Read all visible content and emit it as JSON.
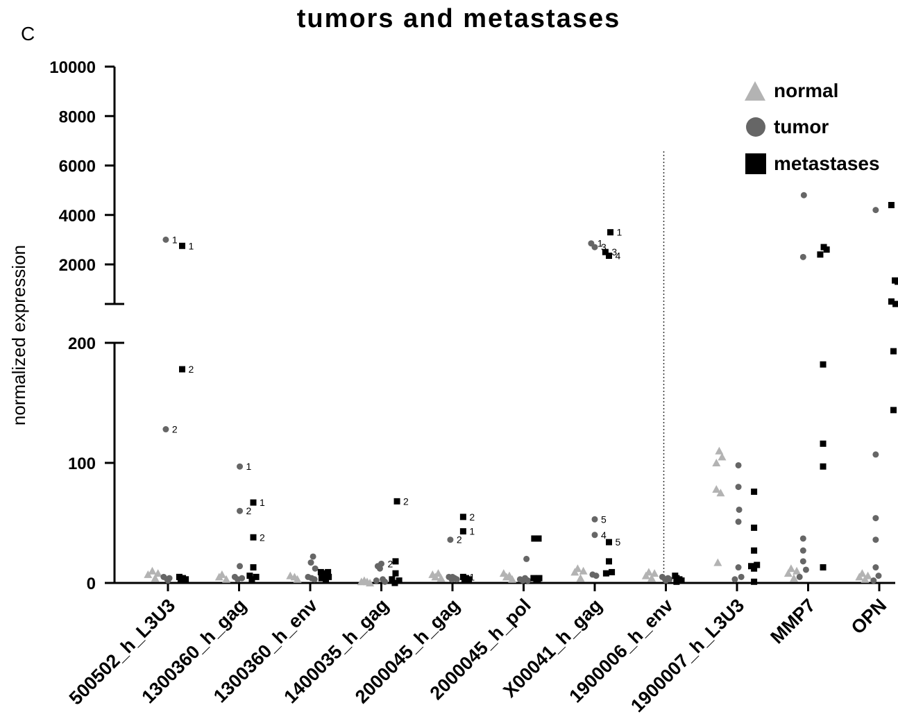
{
  "chart_data": {
    "type": "scatter",
    "title": "tumors and metastases",
    "panel_letter": "C",
    "ylabel": "normalized expression",
    "xlabel": "",
    "y_axis": {
      "broken": true,
      "lower_segment": {
        "range": [
          0,
          200
        ],
        "ticks": [
          0,
          100,
          200
        ]
      },
      "upper_segment": {
        "range": [
          400,
          10000
        ],
        "ticks": [
          2000,
          4000,
          6000,
          8000,
          10000
        ]
      }
    },
    "categories": [
      "500502_h_L3U3",
      "1300360_h_gag",
      "1300360_h_env",
      "1400035_h_gag",
      "2000045_h_gag",
      "2000045_h_pol",
      "X00041_h_gag",
      "1900006_h_env",
      "1900007_h_L3U3",
      "MMP7",
      "OPN"
    ],
    "divider_after_category": "1900006_h_env",
    "legend": {
      "position": "top-right",
      "entries": [
        {
          "name": "normal",
          "marker": "triangle",
          "color": "#b3b3b3"
        },
        {
          "name": "tumor",
          "marker": "circle",
          "color": "#666666"
        },
        {
          "name": "metastases",
          "marker": "square",
          "color": "#000000"
        }
      ]
    },
    "series": [
      {
        "name": "normal",
        "points": [
          {
            "c": 0,
            "o": -0.28,
            "y": 7
          },
          {
            "c": 0,
            "o": -0.22,
            "y": 10
          },
          {
            "c": 0,
            "o": -0.18,
            "y": 4
          },
          {
            "c": 0,
            "o": -0.14,
            "y": 8
          },
          {
            "c": 1,
            "o": -0.28,
            "y": 5
          },
          {
            "c": 1,
            "o": -0.24,
            "y": 7
          },
          {
            "c": 1,
            "o": -0.18,
            "y": 3
          },
          {
            "c": 2,
            "o": -0.28,
            "y": 6
          },
          {
            "c": 2,
            "o": -0.22,
            "y": 5
          },
          {
            "c": 2,
            "o": -0.18,
            "y": 3
          },
          {
            "c": 3,
            "o": -0.28,
            "y": 1
          },
          {
            "c": 3,
            "o": -0.24,
            "y": 2
          },
          {
            "c": 3,
            "o": -0.2,
            "y": 1
          },
          {
            "c": 3,
            "o": -0.16,
            "y": 0
          },
          {
            "c": 4,
            "o": -0.28,
            "y": 7
          },
          {
            "c": 4,
            "o": -0.24,
            "y": 5
          },
          {
            "c": 4,
            "o": -0.2,
            "y": 8
          },
          {
            "c": 4,
            "o": -0.16,
            "y": 4
          },
          {
            "c": 5,
            "o": -0.28,
            "y": 8
          },
          {
            "c": 5,
            "o": -0.24,
            "y": 5
          },
          {
            "c": 5,
            "o": -0.2,
            "y": 6
          },
          {
            "c": 5,
            "o": -0.16,
            "y": 3
          },
          {
            "c": 6,
            "o": -0.28,
            "y": 9
          },
          {
            "c": 6,
            "o": -0.24,
            "y": 12
          },
          {
            "c": 6,
            "o": -0.2,
            "y": 4
          },
          {
            "c": 6,
            "o": -0.16,
            "y": 10
          },
          {
            "c": 7,
            "o": -0.28,
            "y": 6
          },
          {
            "c": 7,
            "o": -0.24,
            "y": 9
          },
          {
            "c": 7,
            "o": -0.2,
            "y": 4
          },
          {
            "c": 7,
            "o": -0.16,
            "y": 8
          },
          {
            "c": 8,
            "o": -0.29,
            "y": 100
          },
          {
            "c": 8,
            "o": -0.25,
            "y": 110
          },
          {
            "c": 8,
            "o": -0.21,
            "y": 105
          },
          {
            "c": 8,
            "o": -0.29,
            "y": 78
          },
          {
            "c": 8,
            "o": -0.23,
            "y": 75
          },
          {
            "c": 8,
            "o": -0.27,
            "y": 17
          },
          {
            "c": 9,
            "o": -0.28,
            "y": 8
          },
          {
            "c": 9,
            "o": -0.24,
            "y": 12
          },
          {
            "c": 9,
            "o": -0.2,
            "y": 4
          },
          {
            "c": 9,
            "o": -0.16,
            "y": 10
          },
          {
            "c": 10,
            "o": -0.28,
            "y": 5
          },
          {
            "c": 10,
            "o": -0.24,
            "y": 8
          },
          {
            "c": 10,
            "o": -0.2,
            "y": 3
          },
          {
            "c": 10,
            "o": -0.16,
            "y": 6
          }
        ]
      },
      {
        "name": "tumor",
        "points": [
          {
            "c": 0,
            "o": -0.03,
            "y": 3000,
            "label": "1"
          },
          {
            "c": 0,
            "o": -0.03,
            "y": 128,
            "label": "2"
          },
          {
            "c": 0,
            "o": -0.06,
            "y": 5
          },
          {
            "c": 0,
            "o": -0.01,
            "y": 3
          },
          {
            "c": 0,
            "o": 0.02,
            "y": 4
          },
          {
            "c": 0,
            "o": 0.0,
            "y": 2
          },
          {
            "c": 1,
            "o": 0.01,
            "y": 97,
            "label": "1"
          },
          {
            "c": 1,
            "o": 0.01,
            "y": 60,
            "label": "2"
          },
          {
            "c": 1,
            "o": 0.01,
            "y": 14
          },
          {
            "c": 1,
            "o": -0.06,
            "y": 5
          },
          {
            "c": 1,
            "o": -0.02,
            "y": 3
          },
          {
            "c": 1,
            "o": 0.04,
            "y": 4
          },
          {
            "c": 2,
            "o": 0.04,
            "y": 22
          },
          {
            "c": 2,
            "o": 0.01,
            "y": 17
          },
          {
            "c": 2,
            "o": 0.07,
            "y": 12
          },
          {
            "c": 2,
            "o": -0.03,
            "y": 5
          },
          {
            "c": 2,
            "o": 0.02,
            "y": 4
          },
          {
            "c": 2,
            "o": 0.06,
            "y": 3
          },
          {
            "c": 3,
            "o": -0.05,
            "y": 14
          },
          {
            "c": 3,
            "o": 0.0,
            "y": 16,
            "label": "2"
          },
          {
            "c": 3,
            "o": -0.02,
            "y": 12
          },
          {
            "c": 3,
            "o": -0.07,
            "y": 2
          },
          {
            "c": 3,
            "o": 0.02,
            "y": 3
          },
          {
            "c": 3,
            "o": 0.05,
            "y": 1
          },
          {
            "c": 4,
            "o": -0.03,
            "y": 36,
            "label": "2"
          },
          {
            "c": 4,
            "o": -0.05,
            "y": 5
          },
          {
            "c": 4,
            "o": -0.01,
            "y": 3
          },
          {
            "c": 4,
            "o": 0.03,
            "y": 4
          },
          {
            "c": 4,
            "o": 0.06,
            "y": 3
          },
          {
            "c": 4,
            "o": 0.0,
            "y": 5
          },
          {
            "c": 5,
            "o": 0.04,
            "y": 20
          },
          {
            "c": 5,
            "o": -0.05,
            "y": 3
          },
          {
            "c": 5,
            "o": -0.01,
            "y": 2
          },
          {
            "c": 5,
            "o": 0.02,
            "y": 4
          },
          {
            "c": 5,
            "o": 0.06,
            "y": 2
          },
          {
            "c": 6,
            "o": -0.05,
            "y": 2850,
            "label": "1"
          },
          {
            "c": 6,
            "o": 0.0,
            "y": 2700,
            "label": "3"
          },
          {
            "c": 6,
            "o": 0.0,
            "y": 53,
            "label": "5"
          },
          {
            "c": 6,
            "o": 0.0,
            "y": 40,
            "label": "4"
          },
          {
            "c": 6,
            "o": -0.03,
            "y": 7
          },
          {
            "c": 6,
            "o": 0.02,
            "y": 6
          },
          {
            "c": 7,
            "o": -0.05,
            "y": 5
          },
          {
            "c": 7,
            "o": -0.01,
            "y": 3
          },
          {
            "c": 7,
            "o": 0.03,
            "y": 4
          },
          {
            "c": 7,
            "o": 0.0,
            "y": 2
          },
          {
            "c": 7,
            "o": 0.05,
            "y": 3
          },
          {
            "c": 8,
            "o": 0.02,
            "y": 98
          },
          {
            "c": 8,
            "o": 0.02,
            "y": 80
          },
          {
            "c": 8,
            "o": 0.03,
            "y": 61
          },
          {
            "c": 8,
            "o": 0.02,
            "y": 51
          },
          {
            "c": 8,
            "o": 0.02,
            "y": 13
          },
          {
            "c": 8,
            "o": -0.03,
            "y": 3
          },
          {
            "c": 8,
            "o": 0.06,
            "y": 5
          },
          {
            "c": 9,
            "o": -0.06,
            "y": 4800
          },
          {
            "c": 9,
            "o": -0.07,
            "y": 2300
          },
          {
            "c": 9,
            "o": -0.07,
            "y": 37
          },
          {
            "c": 9,
            "o": -0.07,
            "y": 27
          },
          {
            "c": 9,
            "o": -0.07,
            "y": 18
          },
          {
            "c": 9,
            "o": -0.03,
            "y": 11
          },
          {
            "c": 9,
            "o": -0.12,
            "y": 5
          },
          {
            "c": 10,
            "o": -0.05,
            "y": 4200
          },
          {
            "c": 10,
            "o": -0.05,
            "y": 107
          },
          {
            "c": 10,
            "o": -0.05,
            "y": 54
          },
          {
            "c": 10,
            "o": -0.05,
            "y": 36
          },
          {
            "c": 10,
            "o": -0.05,
            "y": 13
          },
          {
            "c": 10,
            "o": -0.01,
            "y": 6
          },
          {
            "c": 10,
            "o": -0.08,
            "y": 2
          }
        ]
      },
      {
        "name": "metastases",
        "points": [
          {
            "c": 0,
            "o": 0.2,
            "y": 2750,
            "label": "1"
          },
          {
            "c": 0,
            "o": 0.2,
            "y": 178,
            "label": "2"
          },
          {
            "c": 0,
            "o": 0.16,
            "y": 5
          },
          {
            "c": 0,
            "o": 0.21,
            "y": 4
          },
          {
            "c": 0,
            "o": 0.25,
            "y": 3
          },
          {
            "c": 0,
            "o": 0.18,
            "y": 2
          },
          {
            "c": 1,
            "o": 0.2,
            "y": 67,
            "label": "1"
          },
          {
            "c": 1,
            "o": 0.2,
            "y": 38,
            "label": "2"
          },
          {
            "c": 1,
            "o": 0.2,
            "y": 13
          },
          {
            "c": 1,
            "o": 0.15,
            "y": 6
          },
          {
            "c": 1,
            "o": 0.24,
            "y": 5
          },
          {
            "c": 1,
            "o": 0.18,
            "y": 3
          },
          {
            "c": 2,
            "o": 0.15,
            "y": 9
          },
          {
            "c": 2,
            "o": 0.2,
            "y": 8
          },
          {
            "c": 2,
            "o": 0.25,
            "y": 9
          },
          {
            "c": 2,
            "o": 0.16,
            "y": 4
          },
          {
            "c": 2,
            "o": 0.22,
            "y": 3
          },
          {
            "c": 2,
            "o": 0.26,
            "y": 5
          },
          {
            "c": 3,
            "o": 0.22,
            "y": 68,
            "label": "2"
          },
          {
            "c": 3,
            "o": 0.2,
            "y": 18
          },
          {
            "c": 3,
            "o": 0.2,
            "y": 8
          },
          {
            "c": 3,
            "o": 0.15,
            "y": 3
          },
          {
            "c": 3,
            "o": 0.25,
            "y": 2
          },
          {
            "c": 3,
            "o": 0.19,
            "y": 0
          },
          {
            "c": 4,
            "o": 0.15,
            "y": 55,
            "label": "2"
          },
          {
            "c": 4,
            "o": 0.15,
            "y": 43,
            "label": "1"
          },
          {
            "c": 4,
            "o": 0.15,
            "y": 5,
            "label": "1"
          },
          {
            "c": 4,
            "o": 0.19,
            "y": 4
          },
          {
            "c": 4,
            "o": 0.23,
            "y": 3
          },
          {
            "c": 4,
            "o": 0.17,
            "y": 2
          },
          {
            "c": 5,
            "o": 0.15,
            "y": 37
          },
          {
            "c": 5,
            "o": 0.21,
            "y": 37
          },
          {
            "c": 5,
            "o": 0.14,
            "y": 4
          },
          {
            "c": 5,
            "o": 0.18,
            "y": 3
          },
          {
            "c": 5,
            "o": 0.22,
            "y": 4
          },
          {
            "c": 5,
            "o": 0.2,
            "y": 2
          },
          {
            "c": 6,
            "o": 0.22,
            "y": 3300,
            "label": "1"
          },
          {
            "c": 6,
            "o": 0.15,
            "y": 2500,
            "label": "3"
          },
          {
            "c": 6,
            "o": 0.2,
            "y": 2350,
            "label": "4"
          },
          {
            "c": 6,
            "o": 0.2,
            "y": 34,
            "label": "5"
          },
          {
            "c": 6,
            "o": 0.2,
            "y": 18
          },
          {
            "c": 6,
            "o": 0.24,
            "y": 9
          },
          {
            "c": 6,
            "o": 0.16,
            "y": 8
          },
          {
            "c": 7,
            "o": 0.13,
            "y": 6
          },
          {
            "c": 7,
            "o": 0.15,
            "y": 4
          },
          {
            "c": 7,
            "o": 0.19,
            "y": 3
          },
          {
            "c": 7,
            "o": 0.22,
            "y": 2
          },
          {
            "c": 7,
            "o": 0.15,
            "y": 1
          },
          {
            "c": 8,
            "o": 0.24,
            "y": 76
          },
          {
            "c": 8,
            "o": 0.24,
            "y": 46
          },
          {
            "c": 8,
            "o": 0.24,
            "y": 27
          },
          {
            "c": 8,
            "o": 0.28,
            "y": 15
          },
          {
            "c": 8,
            "o": 0.2,
            "y": 14
          },
          {
            "c": 8,
            "o": 0.24,
            "y": 12
          },
          {
            "c": 8,
            "o": 0.24,
            "y": 1
          },
          {
            "c": 9,
            "o": 0.17,
            "y": 2400
          },
          {
            "c": 9,
            "o": 0.22,
            "y": 2700
          },
          {
            "c": 9,
            "o": 0.26,
            "y": 2600
          },
          {
            "c": 9,
            "o": 0.21,
            "y": 182
          },
          {
            "c": 9,
            "o": 0.21,
            "y": 116
          },
          {
            "c": 9,
            "o": 0.21,
            "y": 97
          },
          {
            "c": 9,
            "o": 0.21,
            "y": 13
          },
          {
            "c": 10,
            "o": 0.17,
            "y": 4400
          },
          {
            "c": 10,
            "o": 0.22,
            "y": 1350
          },
          {
            "c": 10,
            "o": 0.26,
            "y": 1300
          },
          {
            "c": 10,
            "o": 0.17,
            "y": 500
          },
          {
            "c": 10,
            "o": 0.23,
            "y": 400
          },
          {
            "c": 10,
            "o": 0.2,
            "y": 193
          },
          {
            "c": 10,
            "o": 0.2,
            "y": 144
          }
        ]
      }
    ]
  }
}
